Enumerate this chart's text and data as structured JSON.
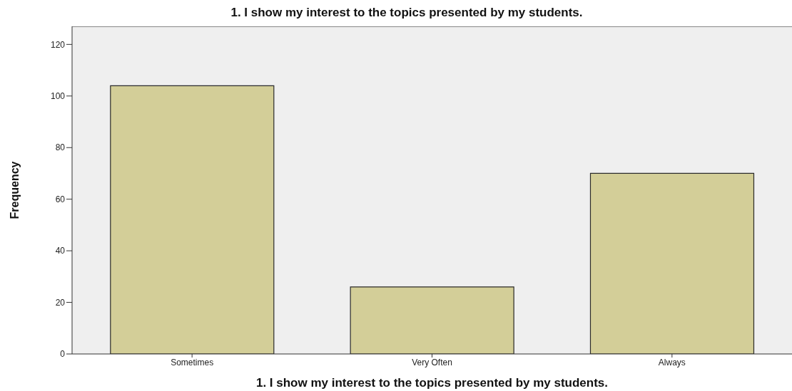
{
  "chart_data": {
    "type": "bar",
    "title": "1.  I show my interest to the topics presented by my students.",
    "xlabel": "1.  I show my interest to the topics presented by my students.",
    "ylabel": "Frequency",
    "categories": [
      "Sometimes",
      "Very Often",
      "Always"
    ],
    "values": [
      104,
      26,
      70
    ],
    "color": "#d3ce98",
    "ylim": [
      0,
      127
    ],
    "yticks": [
      0,
      20,
      40,
      60,
      80,
      100,
      120
    ],
    "grid": false
  }
}
